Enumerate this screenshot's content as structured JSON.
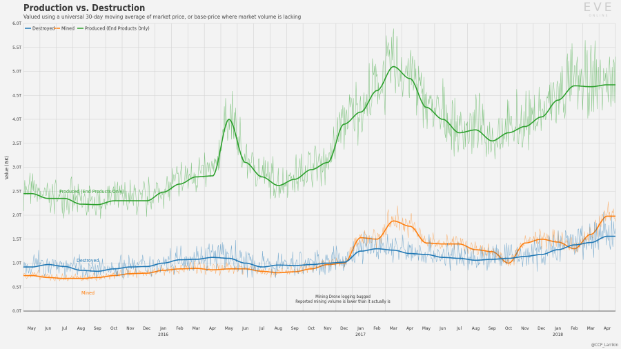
{
  "header": {
    "title": "Production vs. Destruction",
    "subtitle": "Valued using a universal 30-day moving average of market price, or base-price where market volume is lacking",
    "logo_text": "EVE",
    "logo_subtext": "ONLINE"
  },
  "credit": "@CCP_Larrikin",
  "colors": {
    "destroyed": "#1f77b4",
    "mined": "#ff7f0e",
    "produced": "#2ca02c",
    "background": "#f3f3f3",
    "grid": "#d2d2d2"
  },
  "chart_data": {
    "type": "line",
    "title": "Production vs. Destruction",
    "ylabel": "Value (ISK)",
    "xlabel": "",
    "ylim": [
      0,
      6.0
    ],
    "yticks": [
      "0.0T",
      "0.5T",
      "1.0T",
      "1.5T",
      "2.0T",
      "2.5T",
      "3.0T",
      "3.5T",
      "4.0T",
      "4.5T",
      "5.0T",
      "5.5T",
      "6.0T"
    ],
    "x_labels": [
      "May",
      "Jun",
      "Jul",
      "Aug",
      "Sep",
      "Oct",
      "Nov",
      "Dec",
      "Jan",
      "Feb",
      "Mar",
      "Apr",
      "May",
      "Jun",
      "Jul",
      "Aug",
      "Sep",
      "Oct",
      "Nov",
      "Dec",
      "Jan",
      "Feb",
      "Mar",
      "Apr",
      "May",
      "Jun",
      "Jul",
      "Aug",
      "Sep",
      "Oct",
      "Nov",
      "Dec",
      "Jan",
      "Feb",
      "Mar",
      "Apr"
    ],
    "year_labels": [
      {
        "index": 8,
        "label": "2016"
      },
      {
        "index": 20,
        "label": "2017"
      },
      {
        "index": 32,
        "label": "2018"
      }
    ],
    "legend": {
      "position": "top-left",
      "entries": [
        "Destroyed",
        "Mined",
        "Produced (End Products Only)"
      ]
    },
    "grid": true,
    "series": [
      {
        "name": "Destroyed",
        "smooth_values": [
          0.92,
          0.97,
          0.93,
          0.85,
          0.83,
          0.88,
          0.92,
          0.93,
          1.0,
          1.07,
          1.08,
          1.12,
          1.1,
          1.0,
          0.92,
          0.96,
          0.95,
          0.97,
          1.0,
          1.02,
          1.25,
          1.3,
          1.27,
          1.2,
          1.18,
          1.12,
          1.1,
          1.06,
          1.08,
          1.1,
          1.14,
          1.18,
          1.28,
          1.38,
          1.43,
          1.56
        ],
        "spike_scale": 0.5
      },
      {
        "name": "Mined",
        "smooth_values": [
          0.74,
          0.7,
          0.68,
          0.68,
          0.7,
          0.74,
          0.78,
          0.79,
          0.85,
          0.88,
          0.89,
          0.86,
          0.88,
          0.88,
          0.83,
          0.8,
          0.82,
          0.88,
          0.97,
          1.0,
          1.53,
          1.5,
          1.88,
          1.77,
          1.42,
          1.4,
          1.4,
          1.28,
          1.24,
          1.0,
          1.42,
          1.5,
          1.44,
          1.3,
          1.6,
          1.98
        ],
        "spike_scale": 0.22
      },
      {
        "name": "Produced (End Products Only)",
        "smooth_values": [
          2.45,
          2.35,
          2.35,
          2.23,
          2.22,
          2.3,
          2.3,
          2.3,
          2.48,
          2.65,
          2.8,
          2.82,
          4.0,
          3.1,
          2.8,
          2.62,
          2.75,
          2.95,
          3.1,
          3.9,
          4.15,
          4.6,
          5.1,
          4.85,
          4.25,
          4.0,
          3.72,
          3.78,
          3.55,
          3.72,
          3.85,
          4.05,
          4.4,
          4.7,
          4.68,
          4.72
        ],
        "spike_scale": 0.28
      }
    ],
    "annotations": [
      {
        "text": "Produced (End Products Only)",
        "series": "Produced (End Products Only)"
      },
      {
        "text": "Destroyed",
        "series": "Destroyed"
      },
      {
        "text": "Mined",
        "series": "Mined"
      },
      {
        "text": "Mining Drone logging bugged",
        "series": ""
      },
      {
        "text": "Reported mining volume is lower than it actually is",
        "series": ""
      }
    ]
  }
}
